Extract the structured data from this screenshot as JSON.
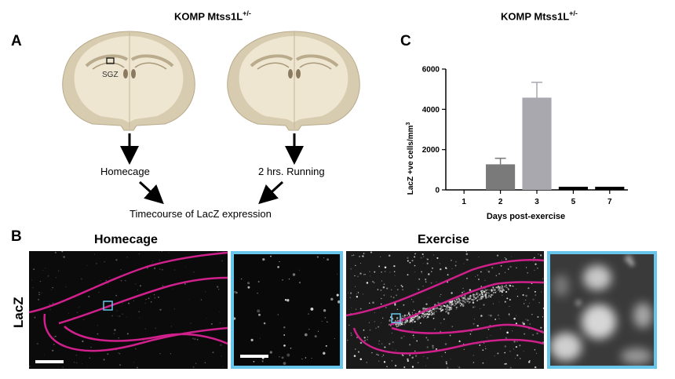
{
  "panel_a": {
    "label": "A",
    "header_main": "KOMP Mtss1L",
    "header_sup": "+/-",
    "sgz_label": "SGZ",
    "left_condition": "Homecage",
    "right_condition": "2 hrs. Running",
    "outcome": "Timecourse of LacZ expression"
  },
  "panel_b": {
    "label": "B",
    "homecage_title": "Homecage",
    "exercise_title": "Exercise",
    "row_label": "LacZ",
    "frame_color": "#67c6ea",
    "outline_color": "#d0208c"
  },
  "panel_c": {
    "label": "C",
    "header_main": "KOMP Mtss1L",
    "header_sup": "+/-"
  },
  "chart_data": {
    "type": "bar",
    "categories": [
      "1",
      "2",
      "3",
      "5",
      "7"
    ],
    "values": [
      0,
      1270,
      4580,
      150,
      150
    ],
    "errors": [
      0,
      300,
      760,
      0,
      0
    ],
    "colors": [
      "#000000",
      "#7a7a7a",
      "#a8a8ae",
      "#000000",
      "#000000"
    ],
    "xlabel": "Days post-exercise",
    "ylabel_main": "LacZ +ve cells/mm",
    "ylabel_sup": "3",
    "ylim": [
      0,
      6000
    ],
    "yticks": [
      "0",
      "2000",
      "4000",
      "6000"
    ],
    "grid": false
  }
}
